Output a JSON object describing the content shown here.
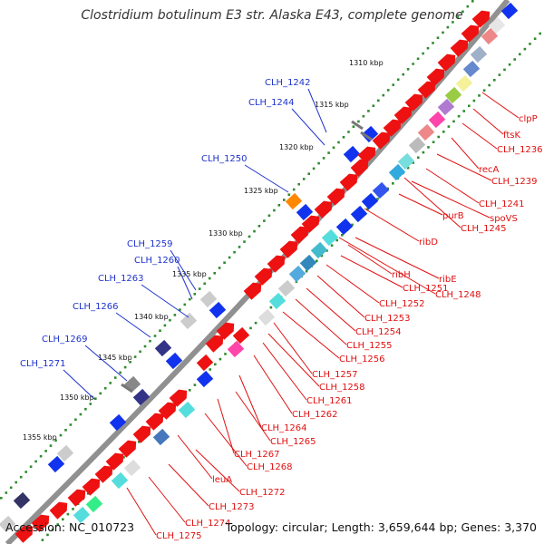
{
  "title": "Clostridium botulinum E3 str. Alaska E43, complete genome",
  "footer": {
    "accession": "Accession: NC_010723",
    "summary": "Topology: circular; Length: 3,659,644 bp; Genes: 3,370"
  },
  "ticks": [
    "1310 kbp",
    "1315 kbp",
    "1320 kbp",
    "1325 kbp",
    "1330 kbp",
    "1335 kbp",
    "1340 kbp",
    "1345 kbp",
    "1350 kbp",
    "1355 kbp"
  ],
  "labels_left": [
    "CLH_1242",
    "CLH_1244",
    "CLH_1250",
    "CLH_1259",
    "CLH_1260",
    "CLH_1263",
    "CLH_1266",
    "CLH_1269",
    "CLH_1271"
  ],
  "labels_right": [
    "clpP",
    "ftsK",
    "CLH_1236",
    "recA",
    "CLH_1239",
    "CLH_1241",
    "spoVS",
    "purB",
    "CLH_1245",
    "ribD",
    "ribE",
    "ribH",
    "CLH_1251",
    "CLH_1248",
    "CLH_1252",
    "CLH_1253",
    "CLH_1254",
    "CLH_1255",
    "CLH_1256",
    "CLH_1257",
    "CLH_1258",
    "CLH_1261",
    "CLH_1262",
    "CLH_1264",
    "CLH_1265",
    "CLH_1267",
    "CLH_1268",
    "leuA",
    "CLH_1272",
    "CLH_1273",
    "CLH_1274",
    "CLH_1275"
  ],
  "colors": {
    "backbone": "#8c8c8c",
    "tick_dots": "#2e8b2e",
    "forward_gene": "#ee1111",
    "reverse_gene": "#1133ee",
    "rna": "#55dddd",
    "label_left": "#1f33cc",
    "label_right": "#e01010"
  }
}
